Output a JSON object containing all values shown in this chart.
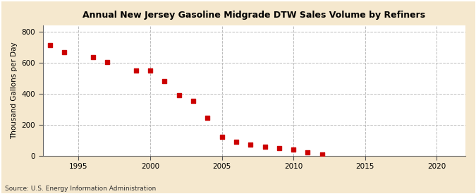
{
  "title": "Annual New Jersey Gasoline Midgrade DTW Sales Volume by Refiners",
  "ylabel": "Thousand Gallons per Day",
  "source": "Source: U.S. Energy Information Administration",
  "fig_background_color": "#f5e8ce",
  "plot_background_color": "#ffffff",
  "marker_color": "#cc0000",
  "grid_color": "#bbbbbb",
  "xlim": [
    1992.5,
    2022
  ],
  "ylim": [
    0,
    840
  ],
  "yticks": [
    0,
    200,
    400,
    600,
    800
  ],
  "xticks": [
    1995,
    2000,
    2005,
    2010,
    2015,
    2020
  ],
  "years": [
    1993,
    1994,
    1996,
    1997,
    1999,
    2000,
    2001,
    2002,
    2003,
    2004,
    2005,
    2006,
    2007,
    2008,
    2009,
    2010,
    2011,
    2012
  ],
  "values": [
    715,
    670,
    635,
    605,
    550,
    550,
    480,
    390,
    355,
    245,
    125,
    90,
    75,
    60,
    50,
    40,
    25,
    10
  ]
}
